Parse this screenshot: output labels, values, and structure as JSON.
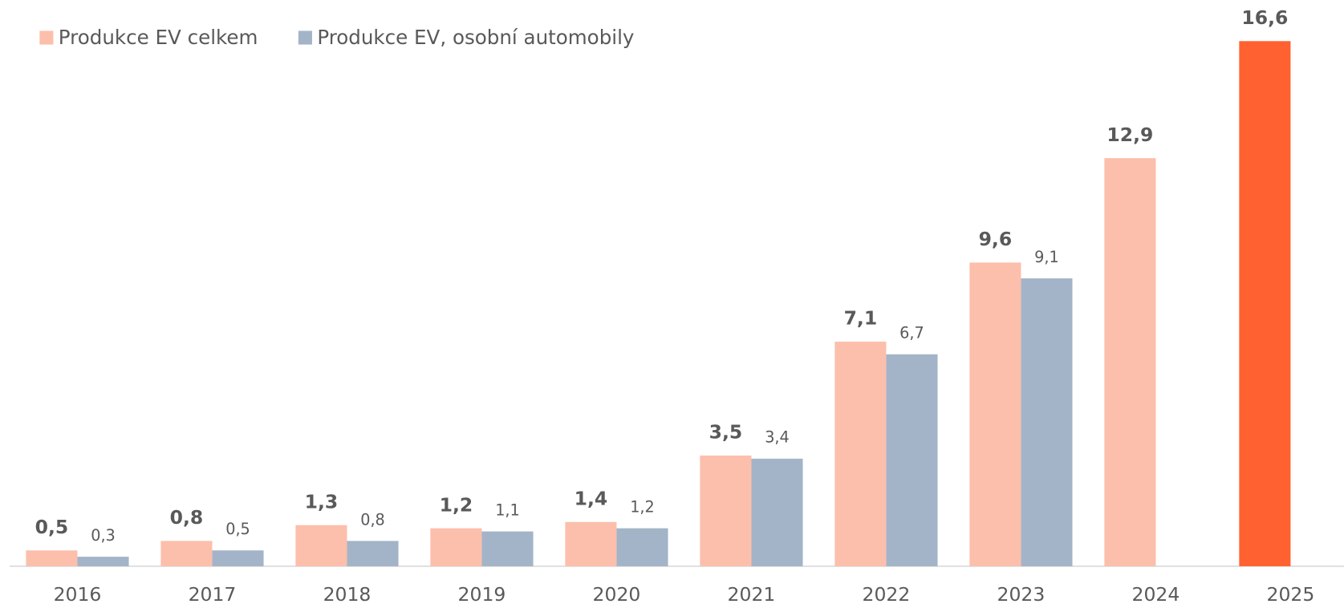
{
  "chart_data": {
    "type": "bar",
    "categories": [
      "2016",
      "2017",
      "2018",
      "2019",
      "2020",
      "2021",
      "2022",
      "2023",
      "2024",
      "2025"
    ],
    "series": [
      {
        "name": "Produkce EV celkem",
        "color": "#fcbfab",
        "colors": [
          "#fcbfab",
          "#fcbfab",
          "#fcbfab",
          "#fcbfab",
          "#fcbfab",
          "#fcbfab",
          "#fcbfab",
          "#fcbfab",
          "#fcbfab",
          "#ff6131"
        ],
        "values": [
          0.5,
          0.8,
          1.3,
          1.2,
          1.4,
          3.5,
          7.1,
          9.6,
          12.9,
          16.6
        ],
        "value_labels": [
          "0,5",
          "0,8",
          "1,3",
          "1,2",
          "1,4",
          "3,5",
          "7,1",
          "9,6",
          "12,9",
          "16,6"
        ]
      },
      {
        "name": "Produkce EV, osobní automobily",
        "color": "#a3b4c8",
        "values": [
          0.3,
          0.5,
          0.8,
          1.1,
          1.2,
          3.4,
          6.7,
          9.1,
          null,
          null
        ],
        "value_labels": [
          "0,3",
          "0,5",
          "0,8",
          "1,1",
          "1,2",
          "3,4",
          "6,7",
          "9,1",
          null,
          null
        ]
      }
    ],
    "legend": "top-left"
  }
}
